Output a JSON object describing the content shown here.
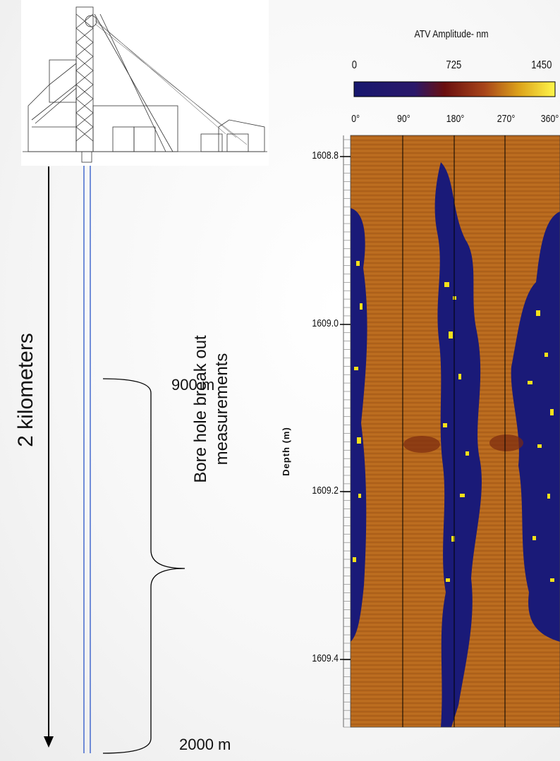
{
  "diagram": {
    "depth_label": "2 kilometers",
    "top_depth": "900 m",
    "bottom_depth": "2000 m",
    "measurement_label_line1": "Bore hole break out",
    "measurement_label_line2": "measurements"
  },
  "chart_data": {
    "type": "heatmap",
    "title": "ATV Amplitude- nm",
    "colorbar_ticks": [
      "0",
      "725",
      "1450"
    ],
    "colorbar_range": [
      0,
      1450
    ],
    "x_ticks": [
      "0°",
      "90°",
      "180°",
      "270°",
      "360°"
    ],
    "ylabel": "Depth (m)",
    "y_ticks": [
      "1608.8",
      "1609.0",
      "1609.2",
      "1609.4"
    ],
    "y_range": [
      1608.8,
      1609.5
    ],
    "x_range": [
      0,
      360
    ],
    "colors": [
      "#1a1a7a",
      "#7a0f0f",
      "#b8621a",
      "#f2d21a",
      "#fff77a"
    ]
  }
}
